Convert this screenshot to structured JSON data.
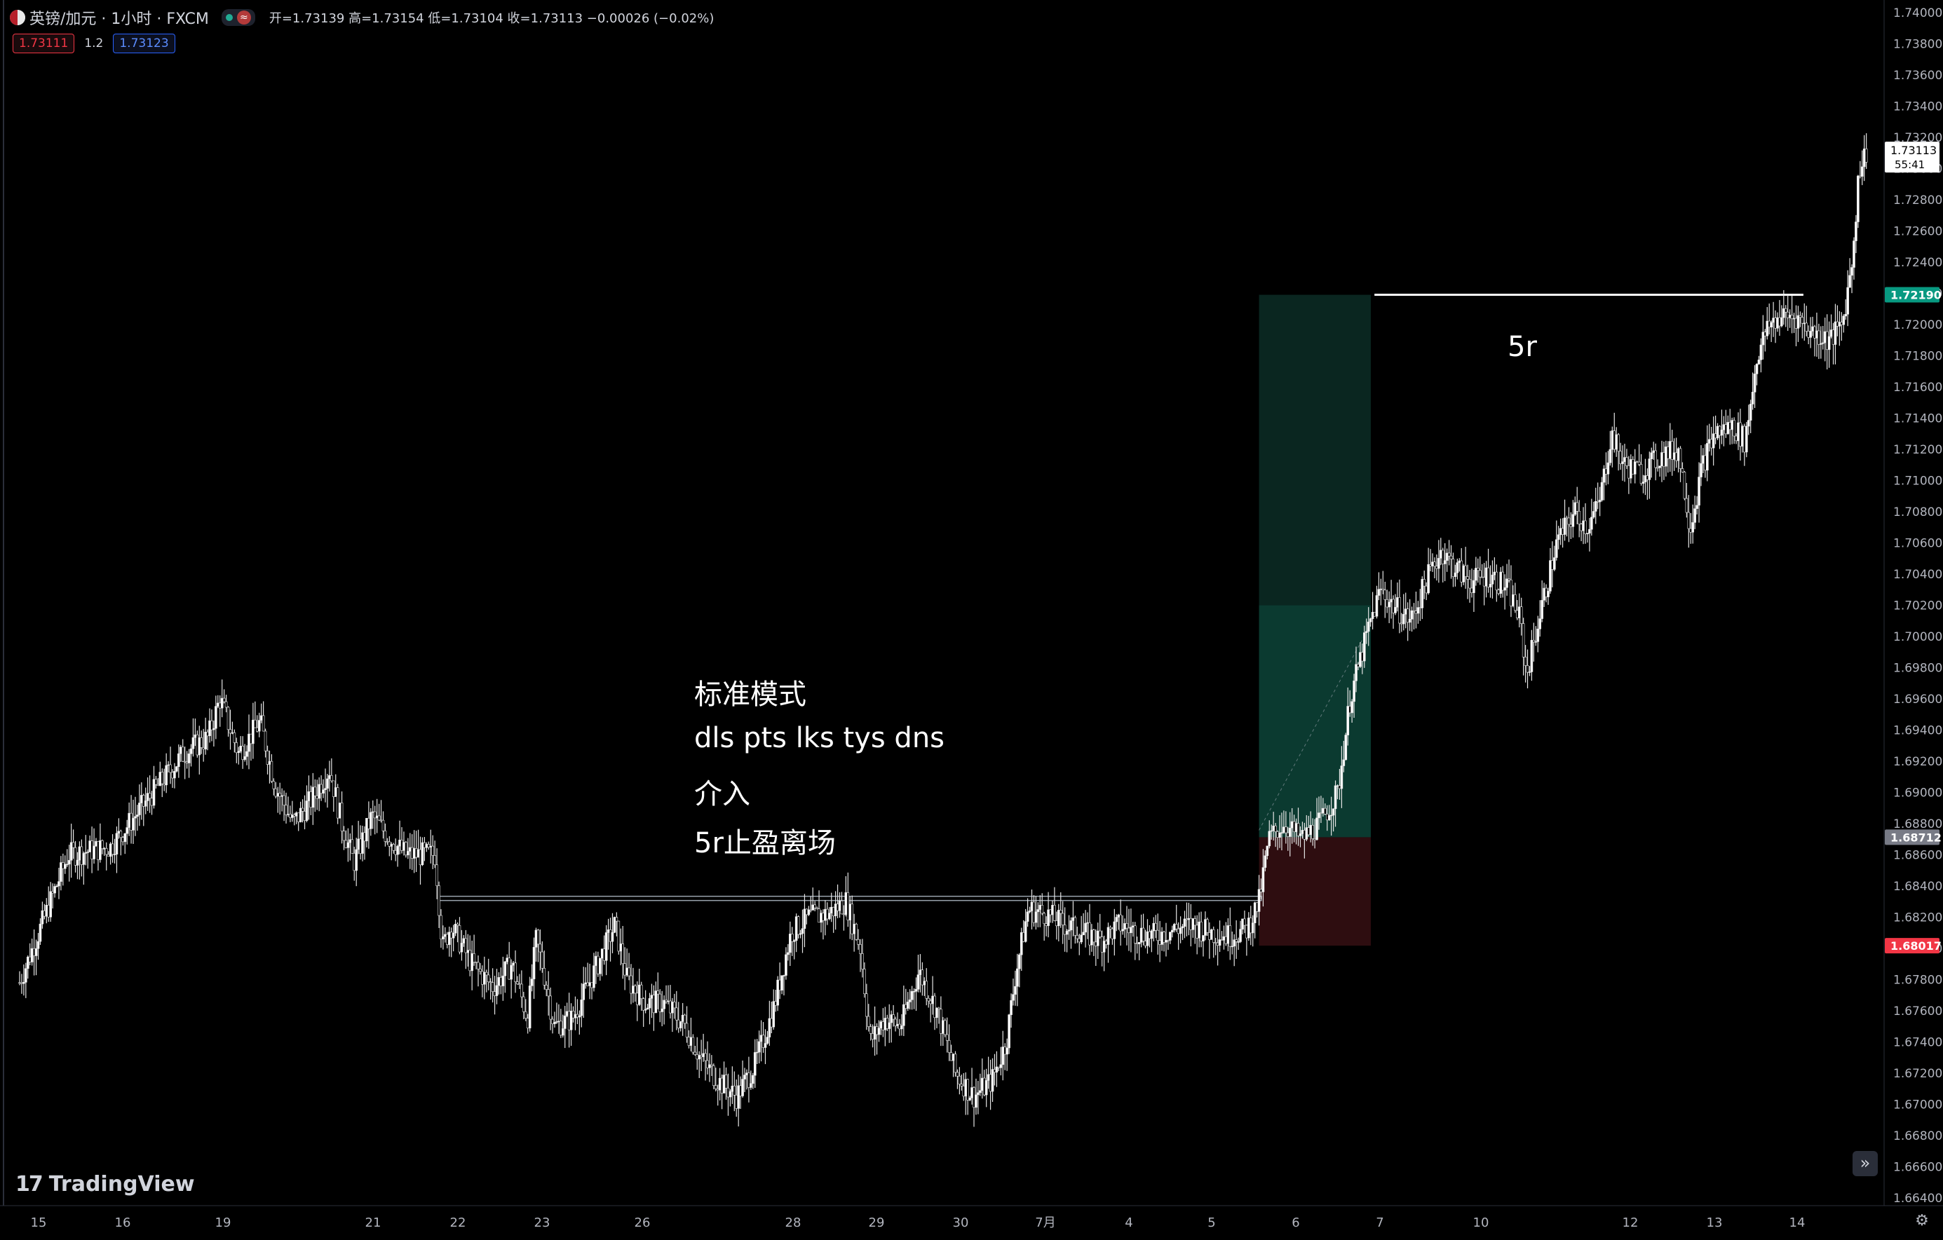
{
  "header": {
    "symbol": "英镑/加元 · 1小时 · FXCM",
    "ohlc": "开=1.73139 高=1.73154 低=1.73104 收=1.73113 −0.00026 (−0.02%)",
    "bid": "1.73111",
    "spread": "1.2",
    "ask": "1.73123"
  },
  "annotations": {
    "line1": "标准模式",
    "line2": "dls pts lks tys dns",
    "line3": "介入",
    "line4": "5r止盈离场",
    "target_label": "5r"
  },
  "brand": {
    "name": "TradingView"
  },
  "colors": {
    "profit_zone": "#0b3a30",
    "target_zone": "#0a2620",
    "stop_zone": "#2e0d10",
    "last_price_bg": "#ffffff",
    "target_price_bg": "#089981",
    "entry_price_bg": "#787b86",
    "stop_price_bg": "#f23645"
  },
  "chart_data": {
    "type": "line",
    "instrument": "GBP/CAD 1H FXCM",
    "y_ticks": [
      "1.74000",
      "1.73800",
      "1.73600",
      "1.73400",
      "1.73200",
      "1.73000",
      "1.72800",
      "1.72600",
      "1.72400",
      "1.72200",
      "1.72000",
      "1.71800",
      "1.71600",
      "1.71400",
      "1.71200",
      "1.71000",
      "1.70800",
      "1.70600",
      "1.70400",
      "1.70200",
      "1.70000",
      "1.69800",
      "1.69600",
      "1.69400",
      "1.69200",
      "1.69000",
      "1.68800",
      "1.68600",
      "1.68400",
      "1.68200",
      "1.68000",
      "1.67800",
      "1.67600",
      "1.67400",
      "1.67200",
      "1.67000",
      "1.66800",
      "1.66600",
      "1.66400"
    ],
    "ylim": [
      1.6635,
      1.7408
    ],
    "x_ticks": [
      "15",
      "16",
      "19",
      "21",
      "22",
      "23",
      "26",
      "28",
      "29",
      "30",
      "7月",
      "4",
      "5",
      "6",
      "7",
      "10",
      "12",
      "13",
      "14"
    ],
    "x": [
      0,
      40,
      75,
      100,
      115,
      135,
      155,
      165,
      180,
      198,
      210,
      225,
      240,
      255,
      265,
      275,
      290,
      305,
      318,
      330,
      342,
      348,
      355,
      372,
      390,
      405,
      418,
      425,
      430,
      440,
      455,
      470,
      490,
      500,
      515,
      530,
      548,
      560,
      575,
      590,
      605,
      620,
      635,
      650,
      665,
      680,
      692,
      700,
      712,
      725,
      740,
      755,
      770,
      785,
      800,
      812,
      820,
      830,
      845,
      860,
      875,
      890,
      905,
      920,
      935,
      950,
      965,
      980,
      995,
      1010,
      1020,
      1028,
      1040,
      1055,
      1070,
      1085,
      1095,
      1105,
      1112,
      1120,
      1130,
      1145,
      1160,
      1170,
      1180,
      1195,
      1210,
      1225,
      1235,
      1240,
      1250,
      1265,
      1280,
      1290,
      1300,
      1310,
      1320,
      1335,
      1350,
      1365,
      1375,
      1385,
      1395,
      1410,
      1420,
      1430,
      1440,
      1450,
      1462,
      1475,
      1490,
      1500,
      1508,
      1514,
      1520
    ],
    "values": [
      1.6778,
      1.686,
      1.6865,
      1.689,
      1.6905,
      1.6925,
      1.6935,
      1.696,
      1.6925,
      1.6945,
      1.6905,
      1.688,
      1.6895,
      1.6915,
      1.688,
      1.6855,
      1.6885,
      1.687,
      1.686,
      1.686,
      1.686,
      1.68,
      1.6815,
      1.679,
      1.6775,
      1.679,
      1.6755,
      1.6805,
      1.679,
      1.675,
      1.6755,
      1.678,
      1.6815,
      1.678,
      1.6765,
      1.6765,
      1.675,
      1.673,
      1.6715,
      1.6705,
      1.6725,
      1.676,
      1.681,
      1.682,
      1.6822,
      1.683,
      1.68,
      1.674,
      1.6755,
      1.675,
      1.6785,
      1.676,
      1.672,
      1.6705,
      1.6715,
      1.674,
      1.6785,
      1.6825,
      1.6822,
      1.6815,
      1.681,
      1.6805,
      1.6815,
      1.681,
      1.6808,
      1.6812,
      1.6815,
      1.681,
      1.6808,
      1.6812,
      1.683,
      1.687,
      1.688,
      1.687,
      1.688,
      1.69,
      1.696,
      1.699,
      1.701,
      1.703,
      1.702,
      1.701,
      1.704,
      1.7055,
      1.7045,
      1.7035,
      1.704,
      1.703,
      1.701,
      1.6975,
      1.701,
      1.706,
      1.708,
      1.707,
      1.7085,
      1.713,
      1.711,
      1.7105,
      1.7115,
      1.712,
      1.707,
      1.711,
      1.713,
      1.7135,
      1.7125,
      1.718,
      1.72,
      1.7205,
      1.7205,
      1.7195,
      1.719,
      1.72,
      1.724,
      1.73,
      1.7311
    ],
    "levels": {
      "last": "1.73113",
      "countdown": "55:41",
      "target": "1.72190",
      "entry": "1.68712",
      "stop": "1.68017",
      "breakout": 1.6832
    },
    "position": {
      "entry": 1.68712,
      "stop": 1.68017,
      "target": 1.7219,
      "tp_zone_mid": 1.702
    }
  }
}
